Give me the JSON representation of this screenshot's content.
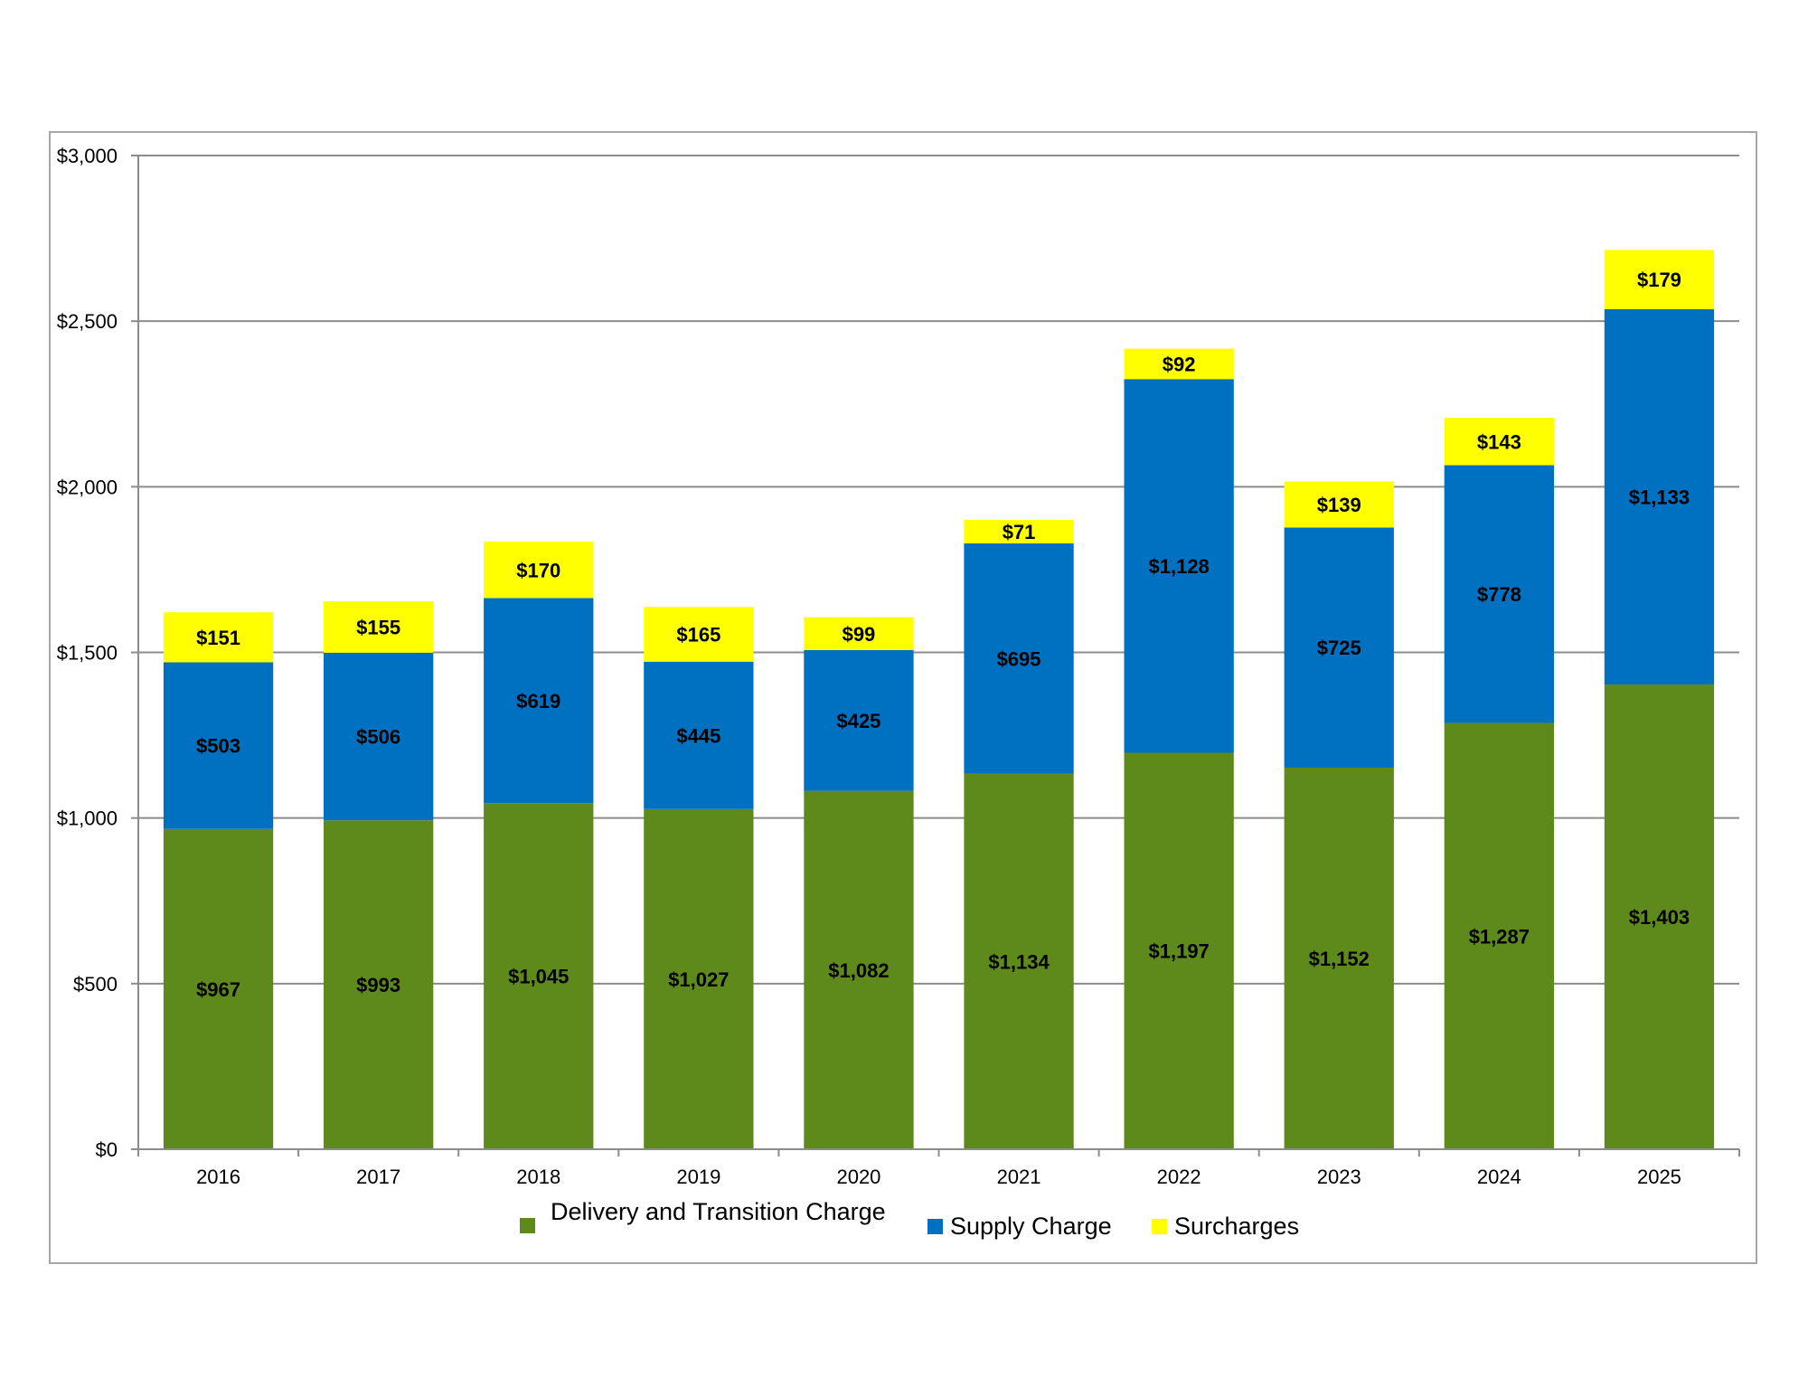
{
  "chart_data": {
    "type": "bar",
    "stacked": true,
    "title": "",
    "xlabel": "",
    "ylabel": "",
    "categories": [
      "2016",
      "2017",
      "2018",
      "2019",
      "2020",
      "2021",
      "2022",
      "2023",
      "2024",
      "2025"
    ],
    "series": [
      {
        "name": "Delivery and Transition Charge",
        "color": "#5E8A1C",
        "values": [
          967,
          993,
          1045,
          1027,
          1082,
          1134,
          1197,
          1152,
          1287,
          1403
        ],
        "labels": [
          "$967",
          "$993",
          "$1,045",
          "$1,027",
          "$1,082",
          "$1,134",
          "$1,197",
          "$1,152",
          "$1,287",
          "$1,403"
        ]
      },
      {
        "name": "Supply Charge",
        "color": "#0070C0",
        "values": [
          503,
          506,
          619,
          445,
          425,
          695,
          1128,
          725,
          778,
          1133
        ],
        "labels": [
          "$503",
          "$506",
          "$619",
          "$445",
          "$425",
          "$695",
          "$1,128",
          "$725",
          "$778",
          "$1,133"
        ]
      },
      {
        "name": "Surcharges",
        "color": "#FFFF00",
        "values": [
          151,
          155,
          170,
          165,
          99,
          71,
          92,
          139,
          143,
          179
        ],
        "labels": [
          "$151",
          "$155",
          "$170",
          "$165",
          "$99",
          "$71",
          "$92",
          "$139",
          "$143",
          "$179"
        ]
      }
    ],
    "ylim": [
      0,
      3000
    ],
    "yticks": [
      0,
      500,
      1000,
      1500,
      2000,
      2500,
      3000
    ],
    "ytick_labels": [
      "$0",
      "$500",
      "$1,000",
      "$1,500",
      "$2,000",
      "$2,500",
      "$3,000"
    ],
    "grid": "horizontal",
    "legend": "bottom-center"
  },
  "style": {
    "gridline_color": "#8C8C8C",
    "frame_color": "#A6A6A6"
  }
}
